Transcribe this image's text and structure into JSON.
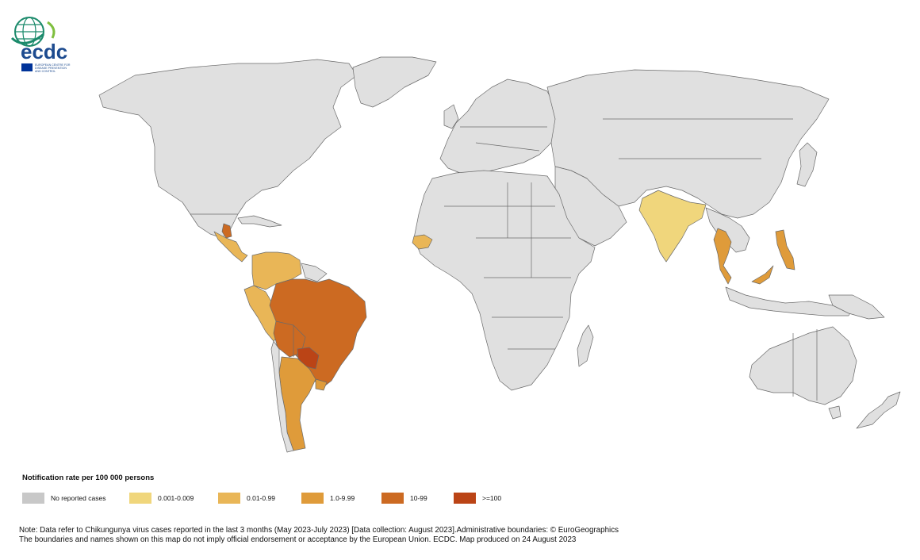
{
  "logo": {
    "wordmark": "ecdc",
    "subtitle_lines": [
      "EUROPEAN CENTRE FOR",
      "DISEASE PREVENTION",
      "AND CONTROL"
    ],
    "colors": {
      "globe": "#1b8a6b",
      "brand": "#1d4b8f",
      "eu_flag": "#003399"
    }
  },
  "map": {
    "colors": {
      "no_data": "#e0e0e0",
      "c1": "#f0d67c",
      "c2": "#e9b657",
      "c3": "#df9b3a",
      "c4": "#cc6a22",
      "c5": "#bb4416",
      "ocean": "#ffffff",
      "border": "#6a6a6a"
    },
    "highlighted_regions": [
      {
        "region": "Brazil",
        "class": "10-99"
      },
      {
        "region": "Bolivia",
        "class": "10-99"
      },
      {
        "region": "Paraguay",
        "class": ">=100"
      },
      {
        "region": "Argentina",
        "class": "1.0-9.99"
      },
      {
        "region": "Uruguay",
        "class": "1.0-9.99"
      },
      {
        "region": "Peru",
        "class": "0.01-0.99"
      },
      {
        "region": "Colombia",
        "class": "0.01-0.99"
      },
      {
        "region": "Venezuela",
        "class": "0.01-0.99"
      },
      {
        "region": "Ecuador",
        "class": "0.01-0.99"
      },
      {
        "region": "Central America",
        "class": "0.01-0.99"
      },
      {
        "region": "India",
        "class": "0.001-0.009"
      },
      {
        "region": "Thailand",
        "class": "1.0-9.99"
      },
      {
        "region": "Malaysia",
        "class": "1.0-9.99"
      },
      {
        "region": "Philippines",
        "class": "1.0-9.99"
      },
      {
        "region": "Senegal",
        "class": "0.01-0.99"
      }
    ]
  },
  "legend": {
    "title": "Notification rate per 100 000 persons",
    "items": [
      {
        "label": "No reported cases",
        "color": "#c8c8c8"
      },
      {
        "label": "0.001-0.009",
        "color": "#f0d67c"
      },
      {
        "label": "0.01-0.99",
        "color": "#e9b657"
      },
      {
        "label": "1.0-9.99",
        "color": "#df9b3a"
      },
      {
        "label": "10-99",
        "color": "#cc6a22"
      },
      {
        "label": ">=100",
        "color": "#bb4416"
      }
    ]
  },
  "note": {
    "line1": "Note: Data refer to Chikungunya virus cases reported in the last 3 months (May 2023-July 2023) [Data collection: August 2023].Administrative boundaries: © EuroGeographics",
    "line2": "The boundaries and names shown on this map do not imply official endorsement or acceptance by the European Union. ECDC. Map produced on 24 August 2023"
  }
}
